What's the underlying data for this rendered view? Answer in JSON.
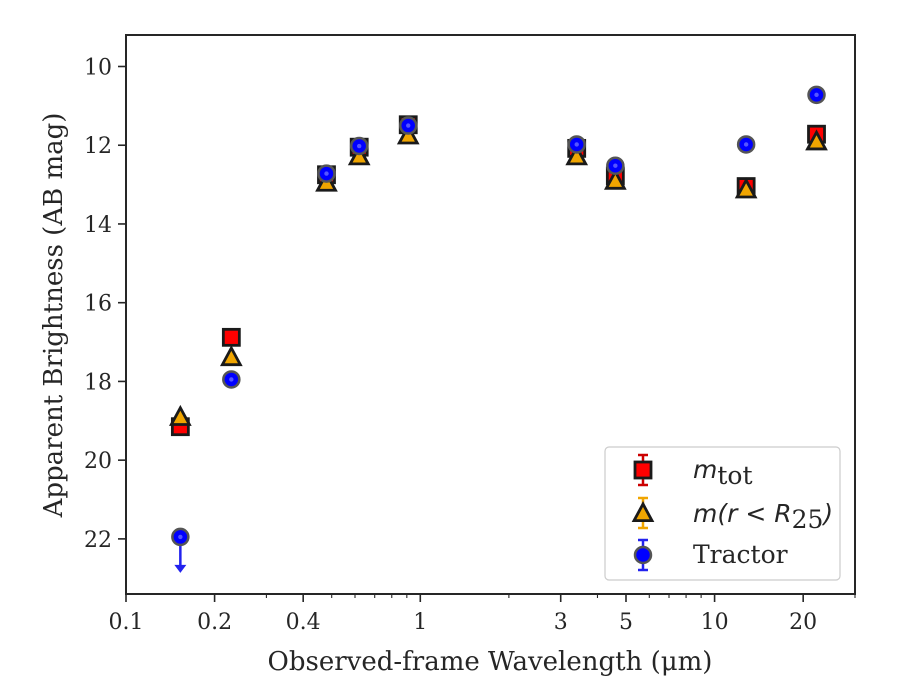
{
  "chart_data": {
    "type": "scatter",
    "xlabel": "Observed-frame Wavelength (μm)",
    "ylabel": "Apparent Brightness (AB mag)",
    "xscale": "log",
    "xlim": [
      0.1,
      30
    ],
    "ylim": [
      23.4,
      9.2
    ],
    "y_inverted": true,
    "grid": false,
    "legend_position": "lower-right",
    "x_ticks": [
      {
        "value": 0.1,
        "label": "0.1"
      },
      {
        "value": 0.2,
        "label": "0.2"
      },
      {
        "value": 0.4,
        "label": "0.4"
      },
      {
        "value": 1,
        "label": "1"
      },
      {
        "value": 3,
        "label": "3"
      },
      {
        "value": 5,
        "label": "5"
      },
      {
        "value": 10,
        "label": "10"
      },
      {
        "value": 20,
        "label": "20"
      }
    ],
    "y_ticks": [
      {
        "value": 10,
        "label": "10"
      },
      {
        "value": 12,
        "label": "12"
      },
      {
        "value": 14,
        "label": "14"
      },
      {
        "value": 16,
        "label": "16"
      },
      {
        "value": 18,
        "label": "18"
      },
      {
        "value": 20,
        "label": "20"
      },
      {
        "value": 22,
        "label": "22"
      }
    ],
    "series": [
      {
        "name": "m_tot",
        "legend_italic": "m",
        "legend_sub": "tot",
        "marker": "square",
        "face_color": "#ff0000",
        "edge_color": "#1a1a1a",
        "errbar_color": "#cc0000",
        "x": [
          0.153,
          0.228,
          0.48,
          0.62,
          0.91,
          3.4,
          4.6,
          12.8,
          22.2
        ],
        "y": [
          19.15,
          16.88,
          12.75,
          12.05,
          11.48,
          12.08,
          12.78,
          13.05,
          11.72
        ]
      },
      {
        "name": "m(r < R_25)",
        "legend_math": "m(r < R",
        "legend_sub": "25",
        "legend_tail": ")",
        "marker": "triangle",
        "face_color": "#f0a500",
        "edge_color": "#1a1a1a",
        "errbar_color": "#f0a500",
        "x": [
          0.153,
          0.228,
          0.48,
          0.62,
          0.91,
          3.4,
          4.6,
          12.8,
          22.2
        ],
        "y": [
          18.9,
          17.38,
          12.95,
          12.28,
          11.75,
          12.28,
          12.9,
          13.12,
          11.9
        ]
      },
      {
        "name": "Tractor",
        "marker": "circle",
        "face_color": "#0000ff",
        "edge_color": "#555555",
        "errbar_color": "#2222ee",
        "x": [
          0.153,
          0.228,
          0.48,
          0.62,
          0.91,
          3.4,
          4.6,
          12.8,
          22.2
        ],
        "y": [
          21.95,
          17.95,
          12.72,
          12.02,
          11.5,
          11.98,
          12.52,
          11.98,
          10.72
        ],
        "upper_limits": [
          true,
          false,
          false,
          false,
          false,
          false,
          false,
          false,
          false
        ]
      }
    ]
  }
}
